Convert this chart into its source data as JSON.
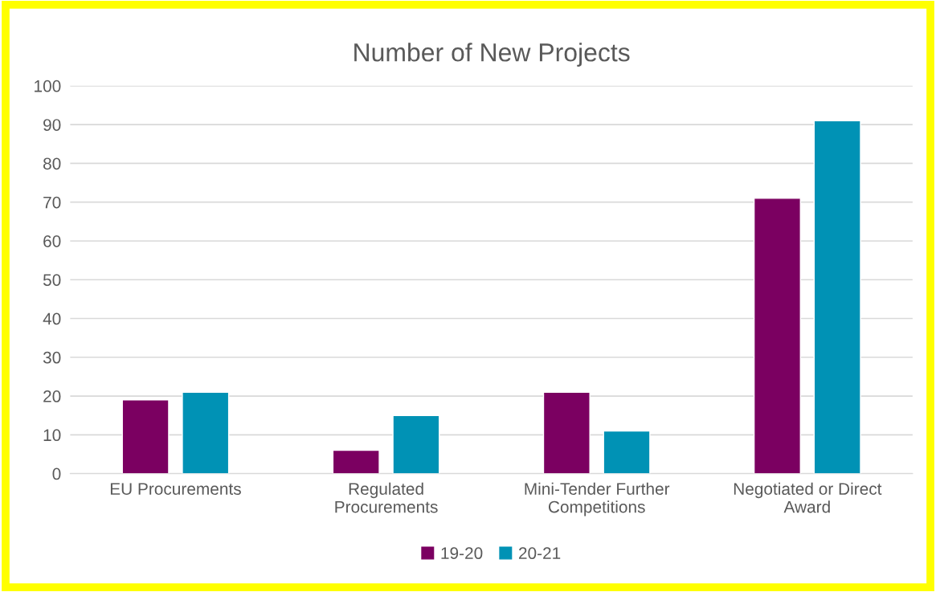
{
  "chart_data": {
    "type": "bar",
    "title": "Number of New Projects",
    "categories": [
      "EU Procurements",
      "Regulated\nProcurements",
      "Mini-Tender Further\nCompetitions",
      "Negotiated or Direct\nAward"
    ],
    "series": [
      {
        "name": "19-20",
        "color": "#7b0061",
        "values": [
          19,
          6,
          21,
          71
        ]
      },
      {
        "name": "20-21",
        "color": "#0092b5",
        "values": [
          21,
          15,
          11,
          91
        ]
      }
    ],
    "ylim": [
      0,
      100
    ],
    "yticks": [
      0,
      10,
      20,
      30,
      40,
      50,
      60,
      70,
      80,
      90,
      100
    ],
    "grid": "y",
    "legend": "bottom"
  }
}
